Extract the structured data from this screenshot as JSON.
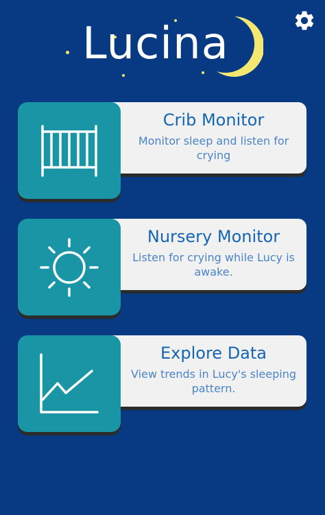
{
  "app": {
    "logo_text": "Lucina"
  },
  "header": {
    "settings_icon": "gear-icon"
  },
  "colors": {
    "background": "#073a82",
    "card_icon_bg": "#1a95a5",
    "card_panel_bg": "#f1f1f1",
    "title": "#1565b2",
    "subtitle": "#4b84c7",
    "moon": "#f4e873"
  },
  "menu": {
    "items": [
      {
        "title": "Crib Monitor",
        "subtitle": "Monitor sleep and listen for crying",
        "icon": "crib-icon"
      },
      {
        "title": "Nursery Monitor",
        "subtitle": "Listen for crying while Lucy is awake.",
        "icon": "sun-icon"
      },
      {
        "title": "Explore Data",
        "subtitle": "View trends in Lucy's sleeping pattern.",
        "icon": "line-chart-icon"
      }
    ]
  }
}
